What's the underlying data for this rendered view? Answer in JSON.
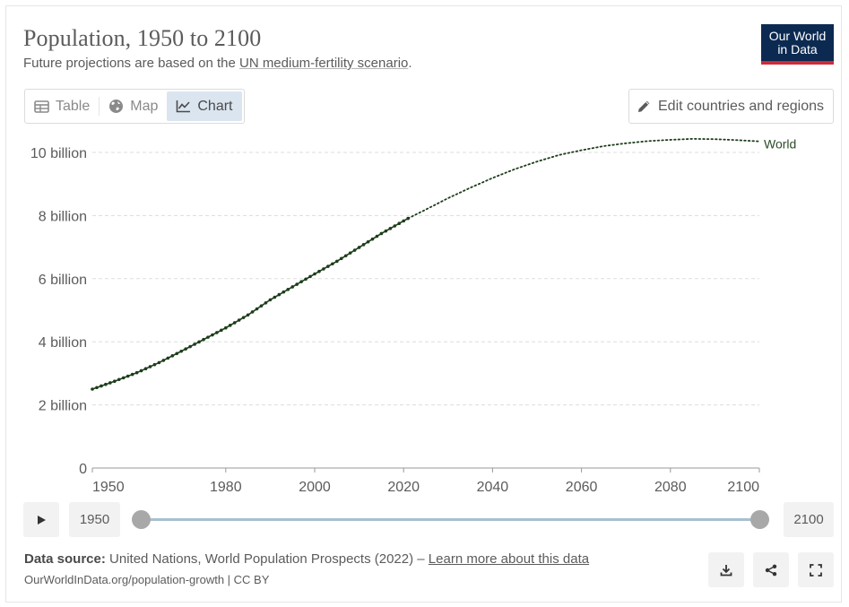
{
  "header": {
    "title": "Population, 1950 to 2100",
    "subtitle_prefix": "Future projections are based on the ",
    "subtitle_link": "UN medium-fertility scenario",
    "subtitle_suffix": ".",
    "logo_line1": "Our World",
    "logo_line2": "in Data"
  },
  "tabs": [
    {
      "label": "Table",
      "icon": "table-icon"
    },
    {
      "label": "Map",
      "icon": "globe-icon"
    },
    {
      "label": "Chart",
      "icon": "line-chart-icon",
      "active": true
    }
  ],
  "edit_button": {
    "label": "Edit countries and regions",
    "icon": "pencil-icon"
  },
  "chart_data": {
    "type": "line",
    "title": "Population, 1950 to 2100",
    "xlabel": "",
    "ylabel": "",
    "xlim": [
      1950,
      2100
    ],
    "ylim": [
      0,
      10.5
    ],
    "y_ticks": [
      0,
      2,
      4,
      6,
      8,
      10
    ],
    "y_tick_labels": [
      "0",
      "2 billion",
      "4 billion",
      "6 billion",
      "8 billion",
      "10 billion"
    ],
    "x_ticks": [
      1950,
      1980,
      2000,
      2020,
      2040,
      2060,
      2080,
      2100
    ],
    "x_tick_labels": [
      "1950",
      "1980",
      "2000",
      "2020",
      "2040",
      "2060",
      "2080",
      "2100"
    ],
    "grid": true,
    "series": [
      {
        "name": "World",
        "unit": "billion",
        "historical": [
          [
            1950,
            2.5
          ],
          [
            1955,
            2.75
          ],
          [
            1960,
            3.02
          ],
          [
            1965,
            3.34
          ],
          [
            1970,
            3.7
          ],
          [
            1975,
            4.07
          ],
          [
            1980,
            4.44
          ],
          [
            1985,
            4.85
          ],
          [
            1990,
            5.33
          ],
          [
            1995,
            5.74
          ],
          [
            2000,
            6.15
          ],
          [
            2005,
            6.55
          ],
          [
            2010,
            6.99
          ],
          [
            2015,
            7.43
          ],
          [
            2021,
            7.91
          ]
        ],
        "projection": [
          [
            2021,
            7.91
          ],
          [
            2025,
            8.19
          ],
          [
            2030,
            8.55
          ],
          [
            2035,
            8.88
          ],
          [
            2040,
            9.19
          ],
          [
            2045,
            9.47
          ],
          [
            2050,
            9.71
          ],
          [
            2055,
            9.92
          ],
          [
            2060,
            10.07
          ],
          [
            2065,
            10.2
          ],
          [
            2070,
            10.29
          ],
          [
            2075,
            10.36
          ],
          [
            2080,
            10.4
          ],
          [
            2085,
            10.43
          ],
          [
            2090,
            10.42
          ],
          [
            2095,
            10.39
          ],
          [
            2100,
            10.35
          ]
        ]
      }
    ],
    "colors": {
      "line": "#1d3d1b",
      "grid": "#dddddd",
      "axis": "#999999",
      "label": "#5b5b5b"
    }
  },
  "timeline": {
    "start_year": "1950",
    "end_year": "2100"
  },
  "footer": {
    "source_label": "Data source:",
    "source_text": " United Nations, World Population Prospects (2022) – ",
    "learn_more": "Learn more about this data",
    "url": "OurWorldInData.org/population-growth | CC BY"
  }
}
